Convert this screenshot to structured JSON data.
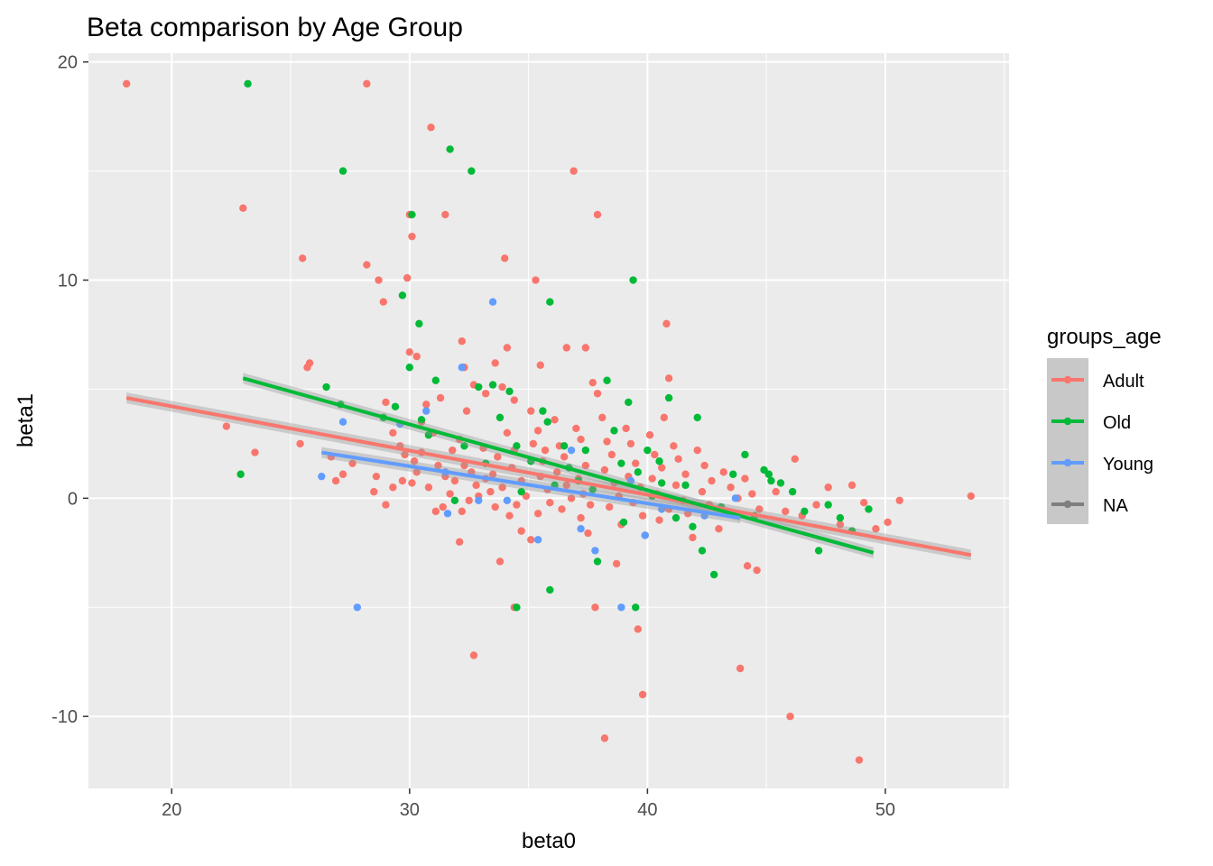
{
  "chart_data": {
    "type": "scatter",
    "title": "Beta comparison by Age Group",
    "xlabel": "beta0",
    "ylabel": "beta1",
    "xlim": [
      16.5,
      55.2
    ],
    "ylim": [
      -13.3,
      20.4
    ],
    "x_ticks": [
      20,
      30,
      40,
      50
    ],
    "x_tick_labels": [
      "20",
      "30",
      "40",
      "50"
    ],
    "y_ticks": [
      -10,
      0,
      10,
      20
    ],
    "y_tick_labels": [
      "-10",
      "0",
      "10",
      "20"
    ],
    "grid": true,
    "legend": {
      "title": "groups_age",
      "position": "right",
      "entries": [
        {
          "label": "Adult",
          "color": "#F8766D"
        },
        {
          "label": "Old",
          "color": "#00BA38"
        },
        {
          "label": "Young",
          "color": "#619CFF"
        },
        {
          "label": "NA",
          "color": "#7F7F7F"
        }
      ]
    },
    "series": [
      {
        "name": "Adult",
        "color": "#F8766D",
        "trend": {
          "x": [
            18.1,
            53.6
          ],
          "y": [
            4.6,
            -2.6
          ]
        },
        "points": [
          [
            18.1,
            19
          ],
          [
            23,
            13.3
          ],
          [
            22.3,
            3.3
          ],
          [
            23.5,
            2.1
          ],
          [
            25.5,
            11
          ],
          [
            25.7,
            6
          ],
          [
            25.8,
            6.2
          ],
          [
            25.4,
            2.5
          ],
          [
            26.9,
            0.8
          ],
          [
            26.7,
            1.9
          ],
          [
            27.2,
            1.1
          ],
          [
            27.6,
            1.6
          ],
          [
            28.2,
            19
          ],
          [
            28.2,
            10.7
          ],
          [
            28.7,
            10
          ],
          [
            28.9,
            9
          ],
          [
            29,
            4.4
          ],
          [
            28.6,
            1
          ],
          [
            29.3,
            3
          ],
          [
            29.6,
            2.4
          ],
          [
            29.8,
            2
          ],
          [
            29.3,
            0.5
          ],
          [
            28.5,
            0.3
          ],
          [
            29,
            -0.3
          ],
          [
            29.7,
            0.8
          ],
          [
            30.2,
            1.7
          ],
          [
            30.5,
            2.1
          ],
          [
            30.3,
            1.2
          ],
          [
            30.8,
            0.5
          ],
          [
            30.1,
            0.7
          ],
          [
            30.9,
            17
          ],
          [
            29.9,
            10.1
          ],
          [
            30,
            13
          ],
          [
            30.1,
            12
          ],
          [
            30.3,
            6.5
          ],
          [
            30.5,
            3.5
          ],
          [
            30.7,
            4.3
          ],
          [
            30,
            6.7
          ],
          [
            31,
            3
          ],
          [
            31.3,
            4.6
          ],
          [
            31.5,
            13
          ],
          [
            31.2,
            1.5
          ],
          [
            31.5,
            1
          ],
          [
            31.7,
            0.2
          ],
          [
            31.8,
            2.2
          ],
          [
            31.1,
            -0.6
          ],
          [
            31.4,
            -0.4
          ],
          [
            31.9,
            0.8
          ],
          [
            32.2,
            7.2
          ],
          [
            32.3,
            6
          ],
          [
            32.7,
            5.2
          ],
          [
            32.4,
            4
          ],
          [
            32.1,
            2.7
          ],
          [
            32.3,
            1.5
          ],
          [
            32.6,
            1.2
          ],
          [
            32.8,
            0.6
          ],
          [
            32.5,
            -0.1
          ],
          [
            32.2,
            -0.6
          ],
          [
            32.9,
            0.1
          ],
          [
            33.1,
            2.3
          ],
          [
            33.2,
            4.8
          ],
          [
            33.5,
            1.1
          ],
          [
            33.7,
            1.9
          ],
          [
            33.2,
            0.9
          ],
          [
            33.4,
            0.3
          ],
          [
            33.6,
            -0.4
          ],
          [
            33.9,
            0.5
          ],
          [
            32.1,
            -2
          ],
          [
            32.7,
            -7.2
          ],
          [
            33.8,
            -2.9
          ],
          [
            33.6,
            6.2
          ],
          [
            33.9,
            5.1
          ],
          [
            34,
            11
          ],
          [
            34.1,
            6.9
          ],
          [
            34.4,
            4.5
          ],
          [
            34.1,
            3
          ],
          [
            34.4,
            2.2
          ],
          [
            34.3,
            1.4
          ],
          [
            34.7,
            0.8
          ],
          [
            34.9,
            0.1
          ],
          [
            34.5,
            -0.3
          ],
          [
            34.2,
            -0.8
          ],
          [
            34.7,
            -1.5
          ],
          [
            34.4,
            -5
          ],
          [
            35.3,
            10
          ],
          [
            35.1,
            4
          ],
          [
            35.4,
            3.1
          ],
          [
            35.2,
            2.5
          ],
          [
            35.6,
            1.7
          ],
          [
            35.5,
            1
          ],
          [
            35.8,
            0.4
          ],
          [
            35.9,
            -0.2
          ],
          [
            35.4,
            -0.7
          ],
          [
            35.1,
            -1.9
          ],
          [
            35.7,
            2.2
          ],
          [
            35.5,
            6.1
          ],
          [
            36.1,
            3.6
          ],
          [
            36.3,
            2.4
          ],
          [
            36.5,
            1.9
          ],
          [
            36.2,
            1.2
          ],
          [
            36.6,
            0.6
          ],
          [
            36.8,
            0
          ],
          [
            36.4,
            -0.5
          ],
          [
            36.9,
            15
          ],
          [
            36.6,
            6.9
          ],
          [
            37,
            3.2
          ],
          [
            37.2,
            2.7
          ],
          [
            37.4,
            1.5
          ],
          [
            37.1,
            0.9
          ],
          [
            37.3,
            0.2
          ],
          [
            37.6,
            -0.3
          ],
          [
            37.2,
            -0.9
          ],
          [
            37.5,
            -1.6
          ],
          [
            37.9,
            13
          ],
          [
            37.7,
            5.3
          ],
          [
            37.4,
            6.9
          ],
          [
            37.9,
            4.8
          ],
          [
            38.1,
            3.7
          ],
          [
            38.3,
            2.6
          ],
          [
            38.5,
            2
          ],
          [
            38.2,
            1.3
          ],
          [
            38.6,
            0.7
          ],
          [
            38.8,
            0.1
          ],
          [
            38.4,
            -0.4
          ],
          [
            38.9,
            -1.2
          ],
          [
            38.7,
            -3
          ],
          [
            37.8,
            -5
          ],
          [
            38.2,
            -11
          ],
          [
            39.1,
            3.2
          ],
          [
            39.3,
            2.5
          ],
          [
            39.5,
            1.6
          ],
          [
            39.2,
            1
          ],
          [
            39.7,
            0.5
          ],
          [
            39.4,
            -0.2
          ],
          [
            39.8,
            -0.8
          ],
          [
            39.9,
            -1.7
          ],
          [
            39.6,
            -6
          ],
          [
            39.8,
            -9
          ],
          [
            40.1,
            2.9
          ],
          [
            40.3,
            2
          ],
          [
            40.6,
            1.4
          ],
          [
            40.2,
            0.9
          ],
          [
            40.4,
            0.2
          ],
          [
            40.8,
            8
          ],
          [
            40.9,
            5.5
          ],
          [
            40.7,
            3.7
          ],
          [
            40.9,
            -0.5
          ],
          [
            40.5,
            -1
          ],
          [
            41.1,
            2.4
          ],
          [
            41.3,
            1.8
          ],
          [
            41.6,
            1.1
          ],
          [
            41.2,
            0.6
          ],
          [
            41.5,
            -0.1
          ],
          [
            41.7,
            -0.7
          ],
          [
            41.9,
            -1.8
          ],
          [
            42.1,
            2.2
          ],
          [
            42.4,
            1.5
          ],
          [
            42.7,
            0.8
          ],
          [
            42.3,
            0.3
          ],
          [
            42.6,
            -0.3
          ],
          [
            43,
            -1.4
          ],
          [
            43.2,
            1.2
          ],
          [
            43.5,
            0.5
          ],
          [
            43.8,
            0
          ],
          [
            44.1,
            0.9
          ],
          [
            44.4,
            0.2
          ],
          [
            44.7,
            -0.5
          ],
          [
            43.9,
            -7.8
          ],
          [
            44.2,
            -3.1
          ],
          [
            44.6,
            -3.3
          ],
          [
            45.1,
            1.1
          ],
          [
            45.4,
            0.3
          ],
          [
            45.8,
            -0.6
          ],
          [
            46.2,
            1.8
          ],
          [
            46.5,
            -0.8
          ],
          [
            46,
            -10
          ],
          [
            47.1,
            -0.3
          ],
          [
            47.6,
            0.5
          ],
          [
            48.1,
            -1.2
          ],
          [
            48.6,
            0.6
          ],
          [
            49.1,
            -0.2
          ],
          [
            48.9,
            -12
          ],
          [
            49.6,
            -1.4
          ],
          [
            50.1,
            -1.1
          ],
          [
            50.6,
            -0.1
          ],
          [
            53.6,
            0.1
          ]
        ]
      },
      {
        "name": "Old",
        "color": "#00BA38",
        "trend": {
          "x": [
            23,
            49.5
          ],
          "y": [
            5.5,
            -2.5
          ]
        },
        "points": [
          [
            23.2,
            19
          ],
          [
            22.9,
            1.1
          ],
          [
            27.2,
            15
          ],
          [
            26.5,
            5.1
          ],
          [
            27.1,
            4.3
          ],
          [
            28.9,
            3.7
          ],
          [
            29.4,
            4.2
          ],
          [
            29.7,
            9.3
          ],
          [
            30.1,
            13
          ],
          [
            30.4,
            8
          ],
          [
            30,
            6
          ],
          [
            30.5,
            3.6
          ],
          [
            31.1,
            5.4
          ],
          [
            30.8,
            2.9
          ],
          [
            31.7,
            16
          ],
          [
            32.6,
            15
          ],
          [
            32.3,
            2.4
          ],
          [
            32.9,
            5.1
          ],
          [
            33.2,
            1.6
          ],
          [
            33.5,
            5.2
          ],
          [
            33.8,
            3.7
          ],
          [
            34.2,
            4.9
          ],
          [
            34.5,
            2.4
          ],
          [
            34.5,
            -5
          ],
          [
            35.1,
            1.7
          ],
          [
            35.6,
            4
          ],
          [
            35.9,
            9
          ],
          [
            35.8,
            3.5
          ],
          [
            36.1,
            0.6
          ],
          [
            36.5,
            2.4
          ],
          [
            35.9,
            -4.2
          ],
          [
            36.7,
            1.4
          ],
          [
            37.4,
            2.2
          ],
          [
            37.7,
            0.4
          ],
          [
            37.9,
            -2.9
          ],
          [
            38.3,
            5.4
          ],
          [
            38.6,
            3.1
          ],
          [
            38.9,
            1.6
          ],
          [
            39.2,
            4.4
          ],
          [
            39.4,
            10
          ],
          [
            39.5,
            -5
          ],
          [
            39.6,
            1.2
          ],
          [
            40,
            2.2
          ],
          [
            40.5,
            1.7
          ],
          [
            40.9,
            4.6
          ],
          [
            40.6,
            0.7
          ],
          [
            41.2,
            -0.9
          ],
          [
            41.6,
            0.6
          ],
          [
            42.1,
            3.7
          ],
          [
            42.3,
            -2.4
          ],
          [
            42.8,
            -3.5
          ],
          [
            43.1,
            -0.4
          ],
          [
            43.6,
            1.1
          ],
          [
            44.1,
            2
          ],
          [
            44.5,
            -0.8
          ],
          [
            44.9,
            1.3
          ],
          [
            45.2,
            0.8
          ],
          [
            45.1,
            1.1
          ],
          [
            45.6,
            0.7
          ],
          [
            46.1,
            0.3
          ],
          [
            46.6,
            -0.6
          ],
          [
            47.2,
            -2.4
          ],
          [
            47.6,
            -0.3
          ],
          [
            48.1,
            -0.9
          ],
          [
            48.6,
            -1.5
          ],
          [
            49.3,
            -0.5
          ],
          [
            31.9,
            -0.1
          ],
          [
            34.7,
            0.3
          ],
          [
            37.1,
            0.8
          ],
          [
            39,
            -1.1
          ],
          [
            40.2,
            0.1
          ],
          [
            41.9,
            -1.3
          ]
        ]
      },
      {
        "name": "Young",
        "color": "#619CFF",
        "trend": {
          "x": [
            26.3,
            43.9
          ],
          "y": [
            2.1,
            -0.9
          ]
        },
        "points": [
          [
            26.3,
            1
          ],
          [
            27.2,
            3.5
          ],
          [
            27.8,
            -5
          ],
          [
            29.6,
            3.4
          ],
          [
            30.7,
            4
          ],
          [
            31.5,
            1.2
          ],
          [
            31.6,
            -0.7
          ],
          [
            32.2,
            6
          ],
          [
            32.9,
            -0.1
          ],
          [
            33.5,
            9
          ],
          [
            34.1,
            -0.1
          ],
          [
            35.4,
            -1.9
          ],
          [
            36.8,
            2.2
          ],
          [
            37.2,
            -1.4
          ],
          [
            37.8,
            -2.4
          ],
          [
            38.9,
            -5
          ],
          [
            39.3,
            0.8
          ],
          [
            39.9,
            -1.7
          ],
          [
            40.6,
            -0.5
          ],
          [
            42.4,
            -0.8
          ],
          [
            43.7,
            0
          ]
        ]
      }
    ]
  }
}
